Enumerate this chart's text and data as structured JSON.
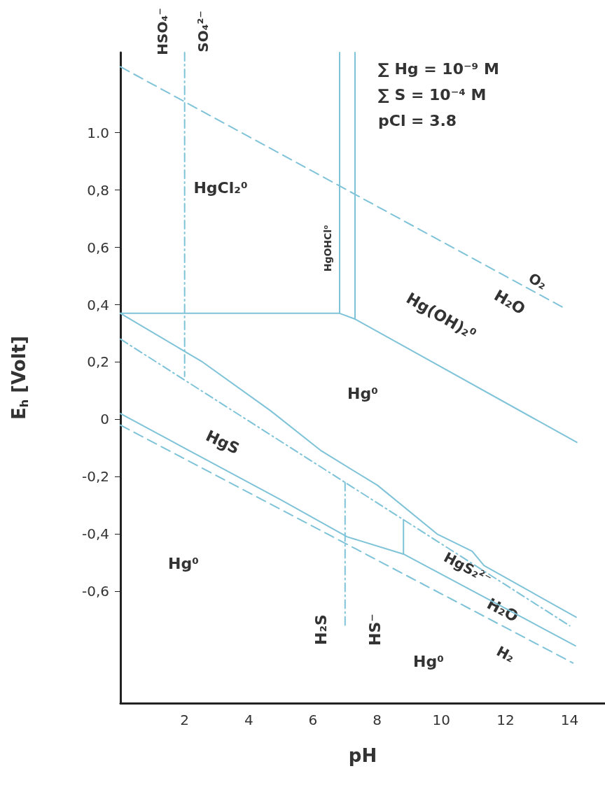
{
  "chart_data": {
    "type": "line",
    "xlabel": "pH",
    "ylabel": "E$_{h}$ [Volt]",
    "xlim": [
      0,
      15.1
    ],
    "ylim": [
      -0.99,
      1.28
    ],
    "xticks": [
      2,
      4,
      6,
      8,
      10,
      12,
      14
    ],
    "yticks": [
      {
        "value": 1,
        "label": "1.0"
      },
      {
        "value": 0.8,
        "label": "0,8"
      },
      {
        "value": 0.6,
        "label": "0,6"
      },
      {
        "value": 0.4,
        "label": "0,4"
      },
      {
        "value": 0.2,
        "label": "0,2"
      },
      0,
      {
        "value": -0.2,
        "label": "-0,2"
      },
      {
        "value": -0.4,
        "label": "-0,4"
      },
      {
        "value": -0.6,
        "label": "-0,6"
      }
    ],
    "grid": false,
    "marker": "none",
    "series": [
      {
        "x": [
          0,
          13.8
        ],
        "values": [
          1.23,
          0.39
        ],
        "color": "#7fc3d8",
        "line_style": "dashed"
      },
      {
        "x": [
          0,
          14.1
        ],
        "values": [
          -0.02,
          -0.85
        ],
        "color": "#7fc3d8",
        "line_style": "dashed"
      },
      {
        "x": [
          2,
          2
        ],
        "values": [
          1.28,
          0.15
        ],
        "color": "#7fc3d8",
        "line_style": "dotted"
      },
      {
        "x": [
          0,
          14
        ],
        "values": [
          0.28,
          -0.72
        ],
        "color": "#7fc3d8",
        "line_style": "dotted"
      },
      {
        "x": [
          7,
          7
        ],
        "values": [
          -0.22,
          -0.72
        ],
        "color": "#7fc3d8",
        "line_style": "dotted"
      },
      {
        "x": [
          6.83,
          6.83
        ],
        "values": [
          0.37,
          1.28
        ],
        "color": "#7fc3d8",
        "line_style": "solid"
      },
      {
        "x": [
          7.31,
          7.31
        ],
        "values": [
          0.35,
          1.28
        ],
        "color": "#7fc3d8",
        "line_style": "solid"
      },
      {
        "x": [
          0,
          6.83,
          7.31,
          14.22
        ],
        "values": [
          0.37,
          0.37,
          0.35,
          -0.08
        ],
        "color": "#7fc3d8",
        "line_style": "solid"
      },
      {
        "x": [
          0,
          2.56,
          4.68,
          6.26,
          8.01,
          9.87,
          10.96,
          11.33,
          14.2
        ],
        "values": [
          0.37,
          0.2,
          0.03,
          -0.11,
          -0.23,
          -0.4,
          -0.46,
          -0.51,
          -0.69
        ],
        "color": "#7fc3d8",
        "line_style": "solid"
      },
      {
        "x": [
          8.82,
          8.82
        ],
        "values": [
          -0.35,
          -0.47
        ],
        "color": "#7fc3d8",
        "line_style": "solid"
      },
      {
        "x": [
          0,
          4.99,
          7.07,
          8.82,
          14.18
        ],
        "values": [
          0.02,
          -0.28,
          -0.41,
          -0.47,
          -0.79
        ],
        "color": "#7fc3d8",
        "line_style": "solid"
      }
    ],
    "annotations": [
      "HSO₄⁻",
      "SO₄²⁻",
      "∑ Hg = 10⁻⁹ M",
      "∑ S = 10⁻⁴ M",
      "pCl = 3.8",
      "HgCl₂⁰",
      "HgOHCl⁰",
      "O₂",
      "H₂O",
      "Hg(OH)₂⁰",
      "Hg⁰",
      "HgS",
      "Hg⁰",
      "HgS₂²⁻",
      "H₂O",
      "H₂S",
      "HS⁻",
      "Hg⁰",
      "H₂"
    ]
  }
}
